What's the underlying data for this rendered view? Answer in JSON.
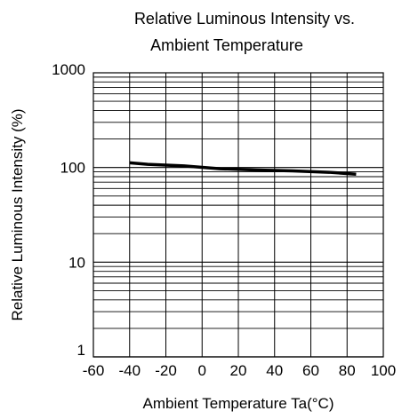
{
  "chart_data": {
    "type": "line",
    "title": "Relative Luminous Intensity vs. Ambient Temperature",
    "title_lines": [
      "Relative Luminous Intensity vs.",
      "Ambient Temperature"
    ],
    "xlabel": "Ambient Temperature Ta(°C)",
    "ylabel": "Relative Luminous Intensity  (%)",
    "xlim": [
      -60,
      100
    ],
    "ylim": [
      1,
      1000
    ],
    "yscale": "log",
    "grid": true,
    "x_ticks": [
      -60,
      -40,
      -20,
      0,
      20,
      40,
      60,
      80,
      100
    ],
    "x_tick_labels": [
      "-60",
      "-40",
      "-20",
      "0",
      "20",
      "40",
      "60",
      "80",
      "100"
    ],
    "y_ticks": [
      1,
      10,
      100,
      1000
    ],
    "y_tick_labels": [
      "1",
      "10",
      "100",
      "1000"
    ],
    "series": [
      {
        "x": [
          -40,
          -30,
          -10,
          10,
          30,
          50,
          70,
          85
        ],
        "y": [
          112,
          108,
          104,
          97,
          94,
          92,
          89,
          85
        ]
      }
    ],
    "line_color": "#000000"
  }
}
